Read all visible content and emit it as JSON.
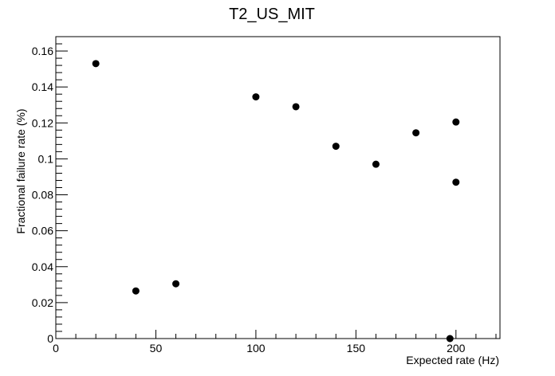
{
  "chart_data": {
    "type": "scatter",
    "title": "T2_US_MIT",
    "xlabel": "Expected rate (Hz)",
    "ylabel": "Fractional failure rate (%)",
    "xlim": [
      0,
      222
    ],
    "ylim": [
      0,
      0.168
    ],
    "x_ticks": [
      "0",
      "50",
      "100",
      "150",
      "200"
    ],
    "y_ticks": [
      "0",
      "0.02",
      "0.04",
      "0.06",
      "0.08",
      "0.1",
      "0.12",
      "0.14",
      "0.16"
    ],
    "grid": false,
    "legend": "none",
    "marker_color": "#000000",
    "points": [
      {
        "x": 20,
        "y": 0.153
      },
      {
        "x": 40,
        "y": 0.0265
      },
      {
        "x": 60,
        "y": 0.0305
      },
      {
        "x": 100,
        "y": 0.1345
      },
      {
        "x": 120,
        "y": 0.129
      },
      {
        "x": 140,
        "y": 0.107
      },
      {
        "x": 160,
        "y": 0.097
      },
      {
        "x": 180,
        "y": 0.1145
      },
      {
        "x": 197,
        "y": 0.0
      },
      {
        "x": 200,
        "y": 0.1205
      },
      {
        "x": 200,
        "y": 0.087
      }
    ]
  }
}
